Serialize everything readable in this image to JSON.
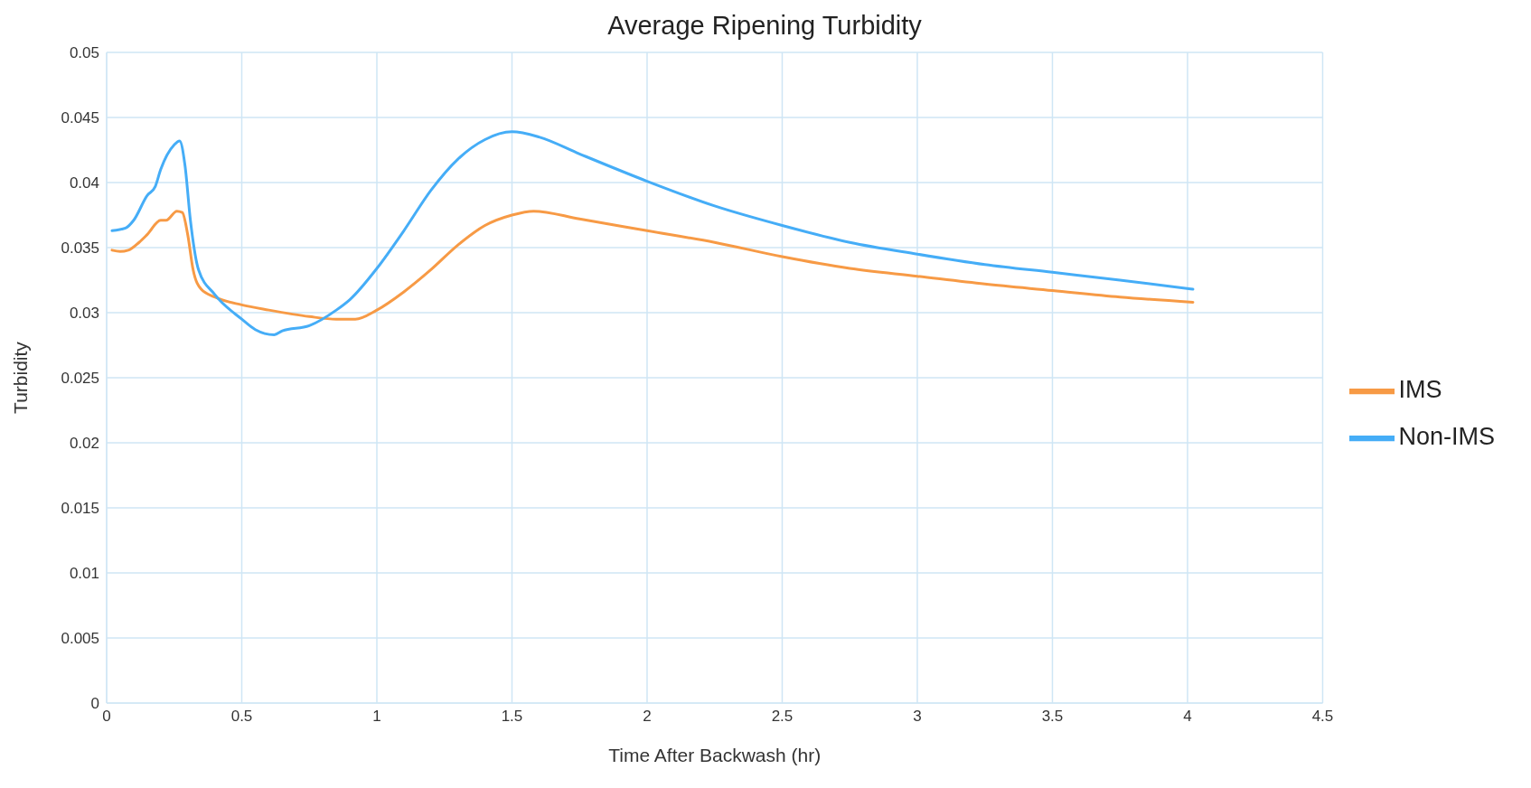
{
  "chart_data": {
    "type": "line",
    "title": "Average Ripening Turbidity",
    "xlabel": "Time After Backwash (hr)",
    "ylabel": "Turbidity",
    "xlim": [
      0,
      4.5
    ],
    "xticks": [
      0,
      0.5,
      1,
      1.5,
      2,
      2.5,
      3,
      3.5,
      4,
      4.5
    ],
    "ylim": [
      0,
      0.05
    ],
    "yticks": [
      0,
      0.005,
      0.01,
      0.015,
      0.02,
      0.025,
      0.03,
      0.035,
      0.04,
      0.045,
      0.05
    ],
    "grid": true,
    "legend": "right",
    "marker": "none",
    "line_style": "solid",
    "series": [
      {
        "name": "IMS",
        "color": "#f79a45",
        "x": [
          0.02,
          0.05,
          0.08,
          0.12,
          0.15,
          0.2,
          0.22,
          0.26,
          0.28,
          0.3,
          0.32,
          0.35,
          0.4,
          0.5,
          0.6,
          0.75,
          0.85,
          0.92,
          1.0,
          1.1,
          1.2,
          1.3,
          1.4,
          1.5,
          1.58,
          1.75,
          2.0,
          2.25,
          2.5,
          2.75,
          3.0,
          3.25,
          3.5,
          3.75,
          4.02
        ],
        "values": [
          0.0348,
          0.0347,
          0.0348,
          0.0354,
          0.036,
          0.0371,
          0.0371,
          0.0378,
          0.0377,
          0.036,
          0.0333,
          0.0318,
          0.0312,
          0.0306,
          0.0302,
          0.0297,
          0.0295,
          0.0295,
          0.0302,
          0.0316,
          0.0333,
          0.0352,
          0.0367,
          0.0375,
          0.0378,
          0.0372,
          0.0363,
          0.0354,
          0.0343,
          0.0334,
          0.0328,
          0.0322,
          0.0317,
          0.0312,
          0.0308
        ]
      },
      {
        "name": "Non-IMS",
        "color": "#45adf7",
        "x": [
          0.02,
          0.07,
          0.1,
          0.15,
          0.18,
          0.2,
          0.25,
          0.27,
          0.29,
          0.31,
          0.34,
          0.4,
          0.5,
          0.55,
          0.62,
          0.65,
          0.75,
          0.85,
          0.9,
          1.0,
          1.1,
          1.2,
          1.3,
          1.4,
          1.5,
          1.6,
          1.75,
          2.0,
          2.25,
          2.5,
          2.75,
          3.0,
          3.25,
          3.5,
          3.75,
          4.02
        ],
        "values": [
          0.0363,
          0.0365,
          0.0371,
          0.039,
          0.0397,
          0.041,
          0.0429,
          0.0432,
          0.0413,
          0.0371,
          0.0333,
          0.0314,
          0.0295,
          0.0287,
          0.0283,
          0.0286,
          0.029,
          0.0302,
          0.031,
          0.0334,
          0.0363,
          0.0394,
          0.0418,
          0.0433,
          0.0439,
          0.0435,
          0.0422,
          0.0401,
          0.0382,
          0.0367,
          0.0354,
          0.0345,
          0.0337,
          0.0331,
          0.0325,
          0.0318
        ]
      }
    ]
  }
}
